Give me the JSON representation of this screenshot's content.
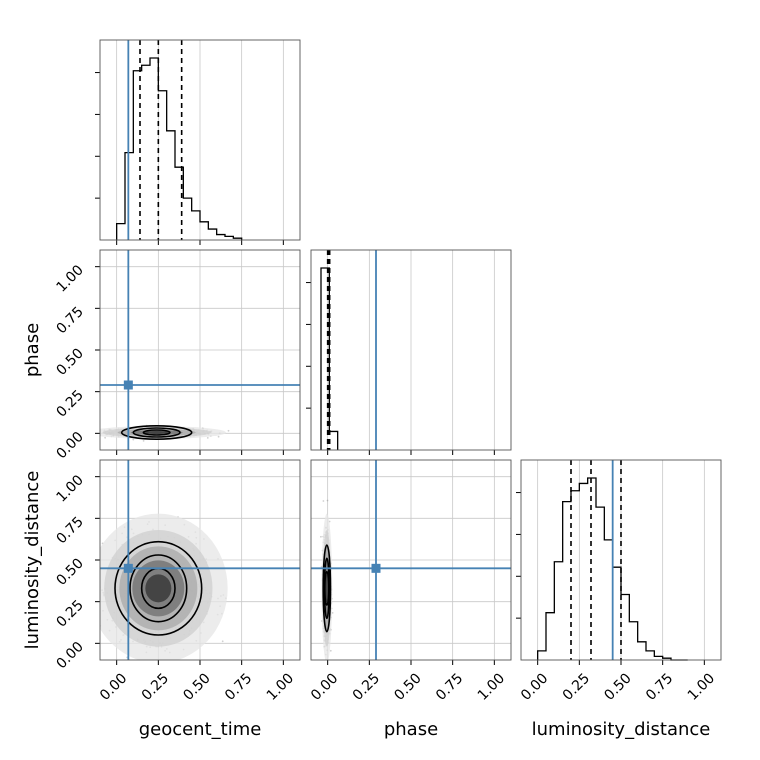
{
  "chart_data": {
    "type": "corner",
    "parameters": [
      "geocent_time",
      "phase",
      "luminosity_distance"
    ],
    "ticks": [
      0.0,
      0.25,
      0.5,
      0.75,
      1.0
    ],
    "tick_labels": [
      "0.00",
      "0.25",
      "0.50",
      "0.75",
      "1.00"
    ],
    "xlim": [
      -0.1,
      1.1
    ],
    "ylim": [
      -0.1,
      1.1
    ],
    "grid": true,
    "truth_color": "#4682b4",
    "truths": {
      "geocent_time": 0.07,
      "phase": 0.29,
      "luminosity_distance": 0.45
    },
    "histograms": [
      {
        "parameter": "geocent_time",
        "bin_edges": [
          0.0,
          0.05,
          0.1,
          0.15,
          0.2,
          0.25,
          0.3,
          0.35,
          0.4,
          0.45,
          0.5,
          0.55,
          0.6,
          0.65,
          0.7,
          0.75
        ],
        "counts": [
          0.09,
          0.48,
          0.93,
          0.96,
          1.0,
          0.82,
          0.6,
          0.4,
          0.23,
          0.16,
          0.1,
          0.06,
          0.03,
          0.02,
          0.01
        ],
        "quantiles": [
          0.14,
          0.25,
          0.39
        ]
      },
      {
        "parameter": "phase",
        "bin_edges": [
          -0.04,
          0.01,
          0.06
        ],
        "counts": [
          0.98,
          0.1
        ],
        "quantiles": [
          0.0,
          0.005,
          0.012
        ]
      },
      {
        "parameter": "luminosity_distance",
        "bin_edges": [
          0.0,
          0.05,
          0.1,
          0.15,
          0.2,
          0.25,
          0.3,
          0.35,
          0.4,
          0.45,
          0.5,
          0.55,
          0.6,
          0.65,
          0.7,
          0.75,
          0.8,
          0.85,
          0.9
        ],
        "counts": [
          0.05,
          0.26,
          0.54,
          0.87,
          0.93,
          0.97,
          1.0,
          0.84,
          0.66,
          0.51,
          0.36,
          0.21,
          0.1,
          0.05,
          0.02,
          0.01,
          0.0,
          0.0
        ],
        "quantiles": [
          0.2,
          0.32,
          0.5
        ]
      }
    ],
    "scatter_panels": [
      {
        "x_param": "geocent_time",
        "y_param": "phase",
        "center": [
          0.24,
          0.005
        ],
        "spread": [
          0.13,
          0.012
        ],
        "contours": [
          [
            0.08,
            0.015
          ],
          [
            0.14,
            0.027
          ],
          [
            0.21,
            0.04
          ]
        ]
      },
      {
        "x_param": "geocent_time",
        "y_param": "luminosity_distance",
        "center": [
          0.25,
          0.33
        ],
        "spread": [
          0.13,
          0.14
        ],
        "contours": [
          [
            0.1,
            0.12
          ],
          [
            0.17,
            0.2
          ],
          [
            0.26,
            0.28
          ]
        ]
      },
      {
        "x_param": "phase",
        "y_param": "luminosity_distance",
        "center": [
          -0.005,
          0.33
        ],
        "spread": [
          0.01,
          0.14
        ],
        "contours": [
          [
            0.008,
            0.1
          ],
          [
            0.014,
            0.18
          ],
          [
            0.022,
            0.26
          ]
        ]
      }
    ]
  }
}
